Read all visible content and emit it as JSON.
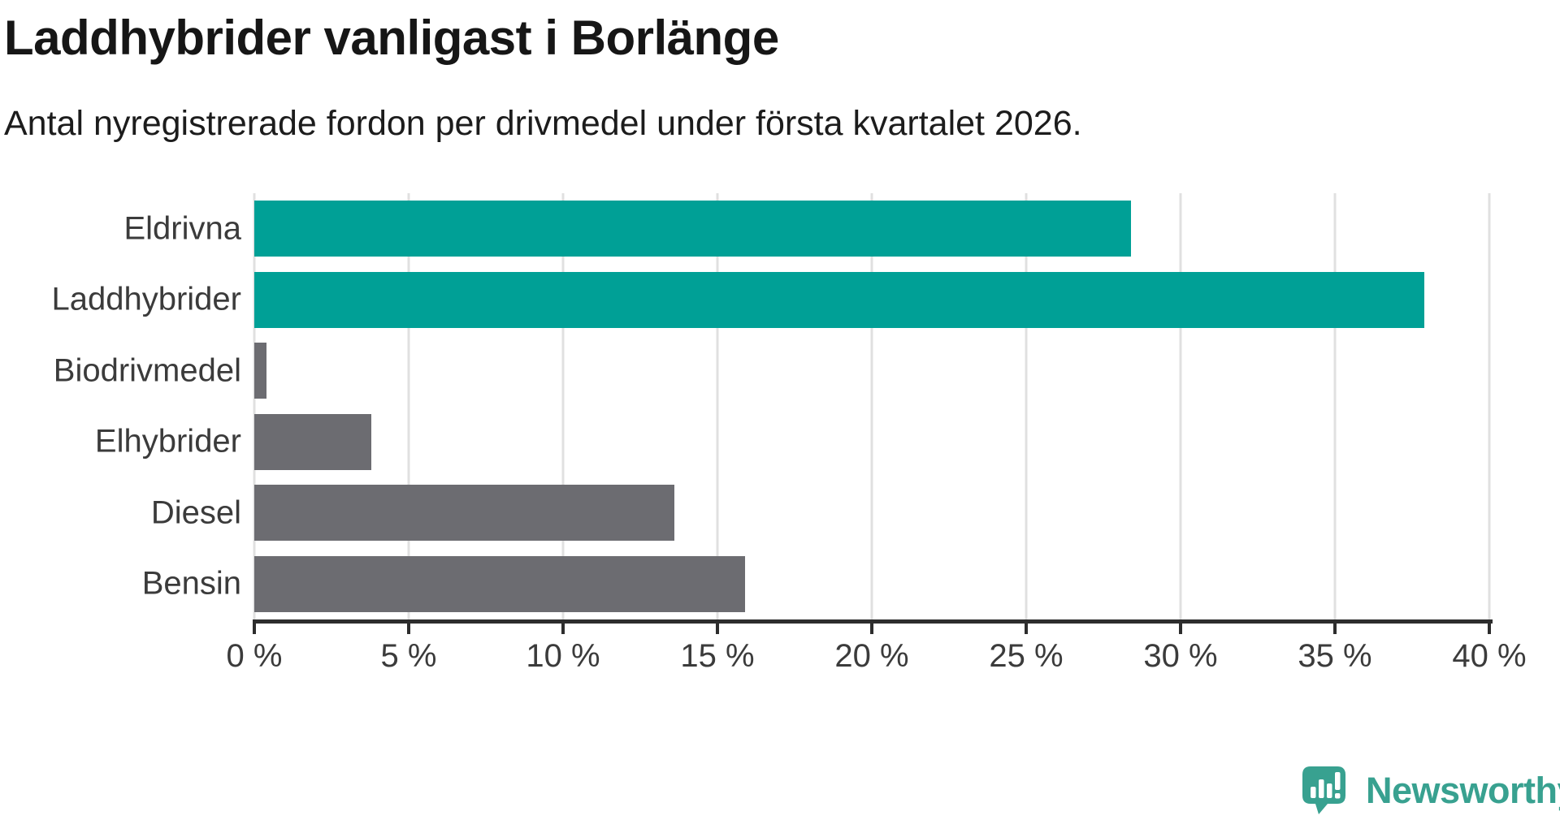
{
  "title": "Laddhybrider vanligast i Borlänge",
  "subtitle": "Antal nyregistrerade fordon per drivmedel under första kvartalet 2026.",
  "chart_data": {
    "type": "bar",
    "orientation": "horizontal",
    "title": "Laddhybrider vanligast i Borlänge",
    "subtitle": "Antal nyregistrerade fordon per drivmedel under första kvartalet 2026.",
    "categories": [
      "Eldrivna",
      "Laddhybrider",
      "Biodrivmedel",
      "Elhybrider",
      "Diesel",
      "Bensin"
    ],
    "values": [
      28.4,
      37.9,
      0.4,
      3.8,
      13.6,
      15.9
    ],
    "unit": "%",
    "xlim": [
      0,
      40
    ],
    "xticks": [
      0,
      5,
      10,
      15,
      20,
      25,
      30,
      35,
      40
    ],
    "xtick_labels": [
      "0 %",
      "5 %",
      "10 %",
      "15 %",
      "20 %",
      "25 %",
      "30 %",
      "35 %",
      "40 %"
    ],
    "bar_colors": [
      "#00a096",
      "#00a096",
      "#6c6c71",
      "#6c6c71",
      "#6c6c71",
      "#6c6c71"
    ],
    "highlight_color": "#00a096",
    "base_color": "#6c6c71",
    "grid": true,
    "grid_color": "#e0e0e0",
    "axis_color": "#2d2d2d",
    "legend": "none"
  },
  "branding": {
    "logo_text": "Newsworthy",
    "logo_color": "#38a190"
  }
}
